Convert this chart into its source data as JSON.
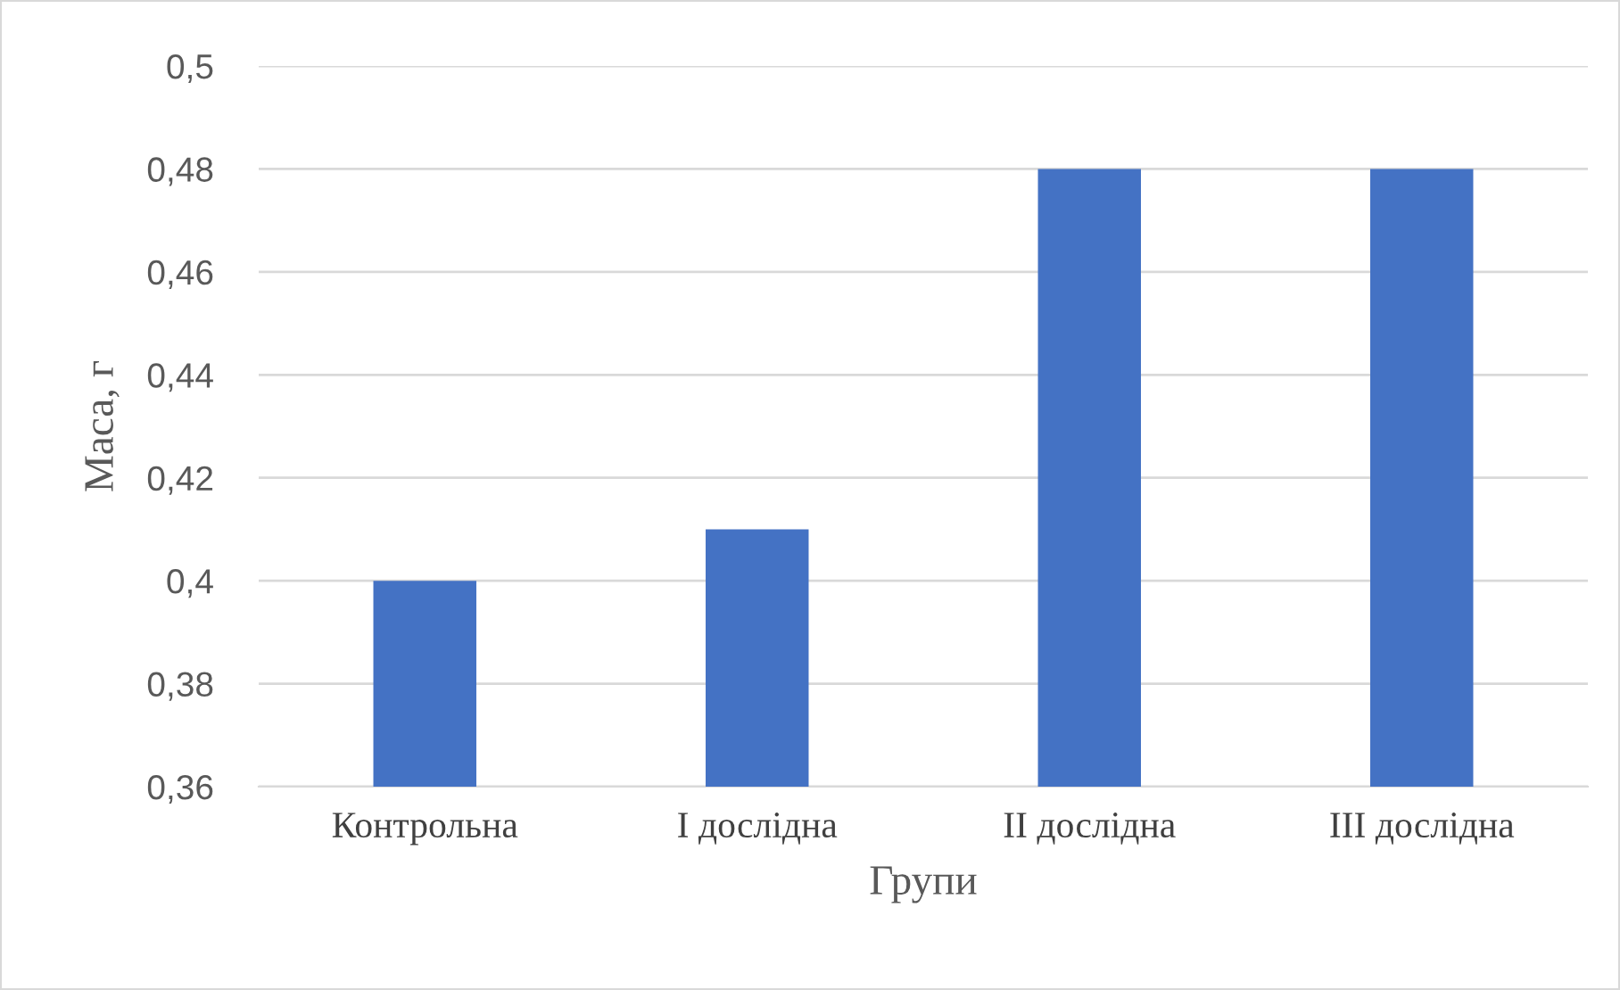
{
  "chart_data": {
    "type": "bar",
    "xlabel": "Групи",
    "ylabel": "Маса, г",
    "categories": [
      "Контрольна",
      "I дослідна",
      "II дослідна",
      "III дослідна"
    ],
    "values": [
      0.4,
      0.41,
      0.48,
      0.48
    ],
    "color": "#4472c4",
    "ylim": [
      0.36,
      0.5
    ],
    "yticks": [
      {
        "value": 0.36,
        "label": "0,36"
      },
      {
        "value": 0.38,
        "label": "0,38"
      },
      {
        "value": 0.4,
        "label": "0,4"
      },
      {
        "value": 0.42,
        "label": "0,42"
      },
      {
        "value": 0.44,
        "label": "0,44"
      },
      {
        "value": 0.46,
        "label": "0,46"
      },
      {
        "value": 0.48,
        "label": "0,48"
      },
      {
        "value": 0.5,
        "label": "0,5"
      }
    ],
    "grid": "y"
  }
}
